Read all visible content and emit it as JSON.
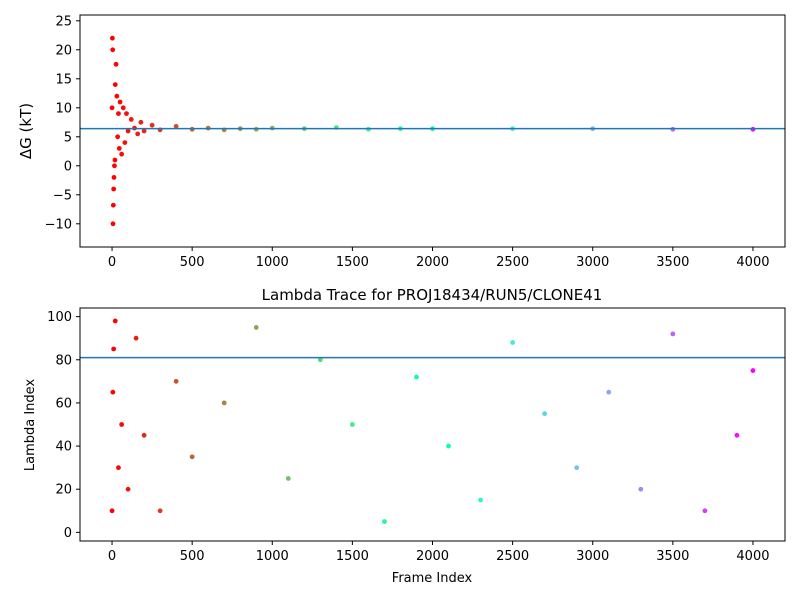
{
  "chart_data": [
    {
      "type": "scatter",
      "title": "",
      "xlabel": "",
      "ylabel": "ΔG (kT)",
      "xlim": [
        -200,
        4200
      ],
      "ylim": [
        -14,
        26
      ],
      "xticks": [
        0,
        500,
        1000,
        1500,
        2000,
        2500,
        3000,
        3500,
        4000
      ],
      "xtick_labels": [
        "0",
        "500",
        "1000",
        "1500",
        "2000",
        "2500",
        "3000",
        "3500",
        "4000"
      ],
      "yticks": [
        -10,
        -5,
        0,
        5,
        10,
        15,
        20,
        25
      ],
      "ytick_labels": [
        "−10",
        "−5",
        "0",
        "5",
        "10",
        "15",
        "20",
        "25"
      ],
      "hline": 6.4,
      "hline_color": "#1f77b4",
      "colormap": "rainbow (reversed: red at frame 0, violet at frame 4000)",
      "series": [
        {
          "x": [
            0,
            2,
            4,
            6,
            8,
            10,
            12,
            15,
            18,
            20,
            25,
            30,
            35,
            40,
            45,
            50,
            60,
            70,
            80,
            90,
            100,
            120,
            140,
            160,
            180,
            200,
            250,
            300,
            400,
            500,
            600,
            700,
            800,
            900,
            1000,
            1200,
            1400,
            1600,
            1800,
            2000,
            2500,
            3000,
            3500,
            4000
          ],
          "y": [
            10,
            22,
            20,
            -10,
            -6.8,
            -4,
            -2,
            0,
            1,
            14,
            17.5,
            12,
            5,
            9,
            3,
            11,
            2,
            10,
            4,
            9,
            6,
            8,
            6.5,
            5.5,
            7.5,
            6,
            7,
            6.2,
            6.8,
            6.3,
            6.5,
            6.2,
            6.4,
            6.3,
            6.5,
            6.4,
            6.6,
            6.3,
            6.4,
            6.4,
            6.4,
            6.4,
            6.3,
            6.3
          ]
        }
      ]
    },
    {
      "type": "scatter",
      "title": "Lambda Trace for PROJ18434/RUN5/CLONE41",
      "xlabel": "Frame Index",
      "ylabel": "Lambda Index",
      "xlim": [
        -200,
        4200
      ],
      "ylim": [
        -4,
        104
      ],
      "xticks": [
        0,
        500,
        1000,
        1500,
        2000,
        2500,
        3000,
        3500,
        4000
      ],
      "xtick_labels": [
        "0",
        "500",
        "1000",
        "1500",
        "2000",
        "2500",
        "3000",
        "3500",
        "4000"
      ],
      "yticks": [
        0,
        20,
        40,
        60,
        80,
        100
      ],
      "ytick_labels": [
        "0",
        "20",
        "40",
        "60",
        "80",
        "100"
      ],
      "hline": 81,
      "hline_color": "#1f77b4",
      "colormap": "rainbow (reversed: red at frame 0, violet at frame 4000)",
      "series": [
        {
          "x": [
            0,
            5,
            10,
            20,
            40,
            60,
            100,
            150,
            200,
            300,
            400,
            500,
            700,
            900,
            1100,
            1300,
            1500,
            1700,
            1900,
            2100,
            2300,
            2500,
            2700,
            2900,
            3100,
            3300,
            3500,
            3700,
            3900,
            4000
          ],
          "y": [
            10,
            65,
            85,
            98,
            30,
            50,
            20,
            90,
            45,
            10,
            70,
            35,
            60,
            95,
            25,
            80,
            50,
            5,
            72,
            40,
            15,
            88,
            55,
            30,
            65,
            20,
            92,
            10,
            45,
            75
          ]
        }
      ]
    }
  ]
}
